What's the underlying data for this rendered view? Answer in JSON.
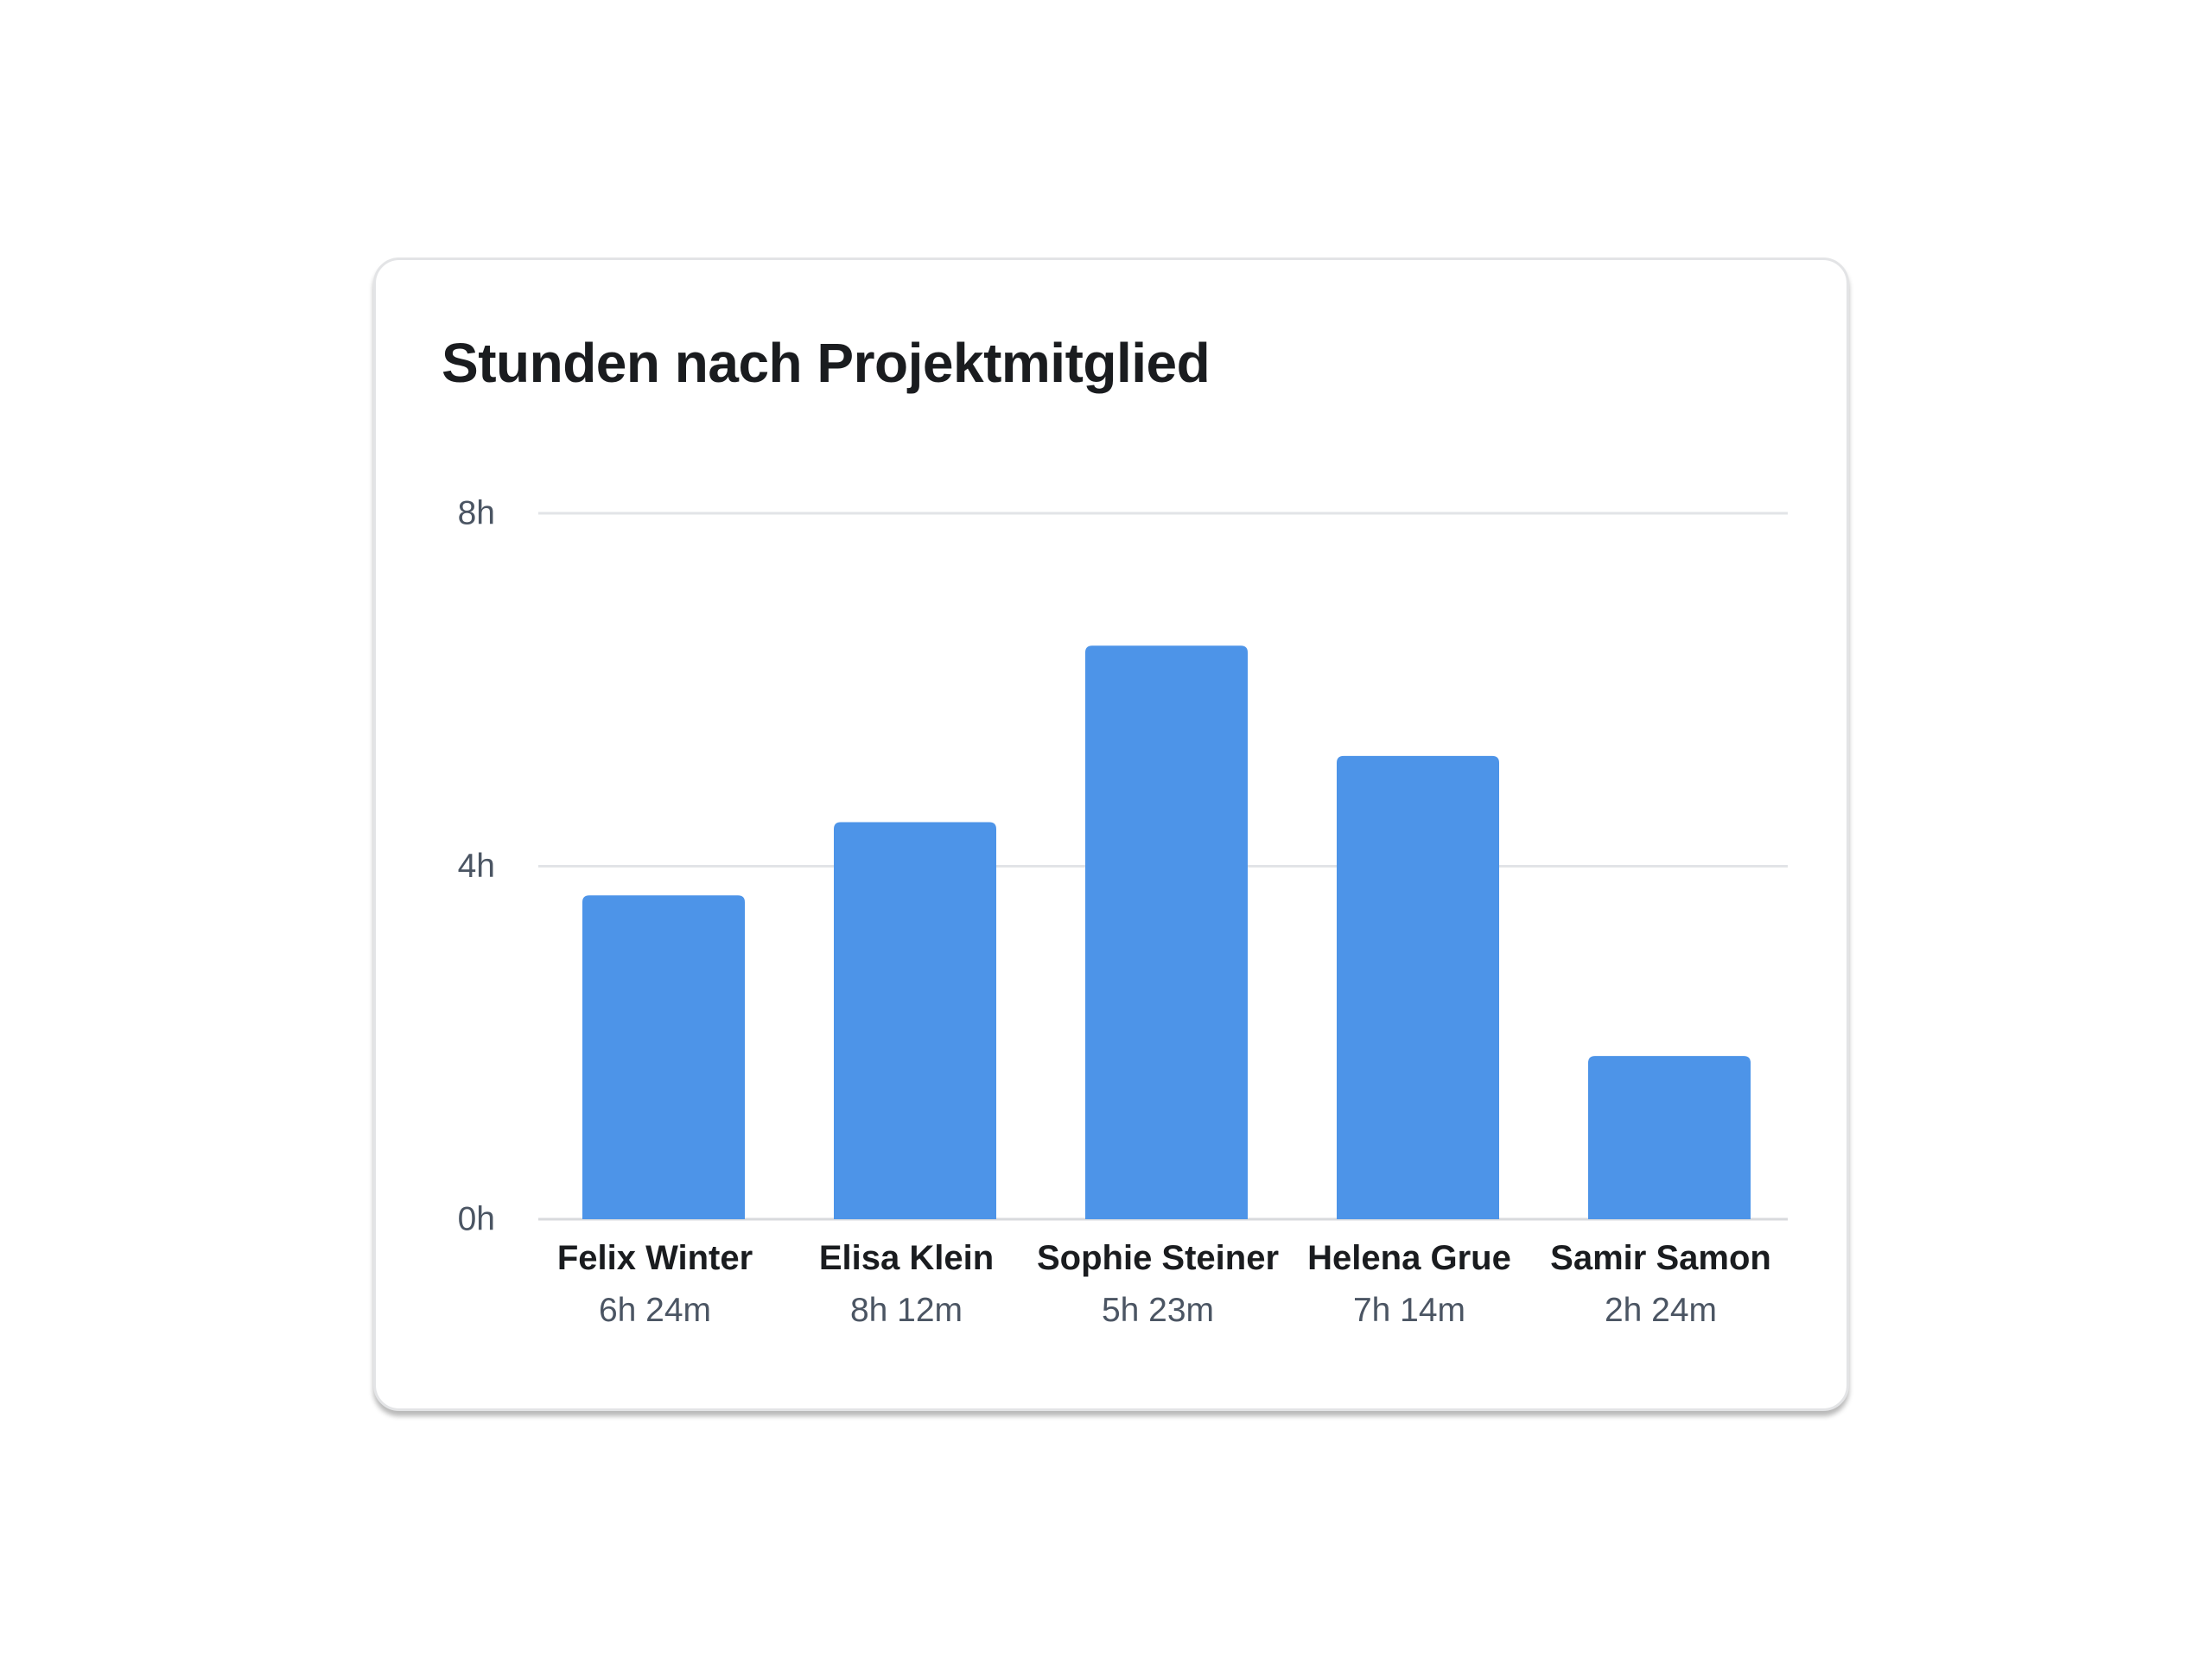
{
  "chart_data": {
    "type": "bar",
    "title": "Stunden nach Projektmitglied",
    "categories": [
      "Felix Winter",
      "Elisa Klein",
      "Sophie Steiner",
      "Helena Grue",
      "Samir Samon"
    ],
    "category_sublabels": [
      "6h 24m",
      "8h 12m",
      "5h 23m",
      "7h 14m",
      "2h 24m"
    ],
    "values": [
      3.67,
      4.5,
      6.5,
      5.25,
      1.85
    ],
    "value_unit": "h",
    "ylim": [
      0,
      8
    ],
    "yticks": [
      0,
      4,
      8
    ],
    "ytick_labels": [
      "0h",
      "4h",
      "8h"
    ],
    "xlabel": "",
    "ylabel": "",
    "grid": true,
    "legend": "none",
    "bar_color": "#4d94e8"
  }
}
